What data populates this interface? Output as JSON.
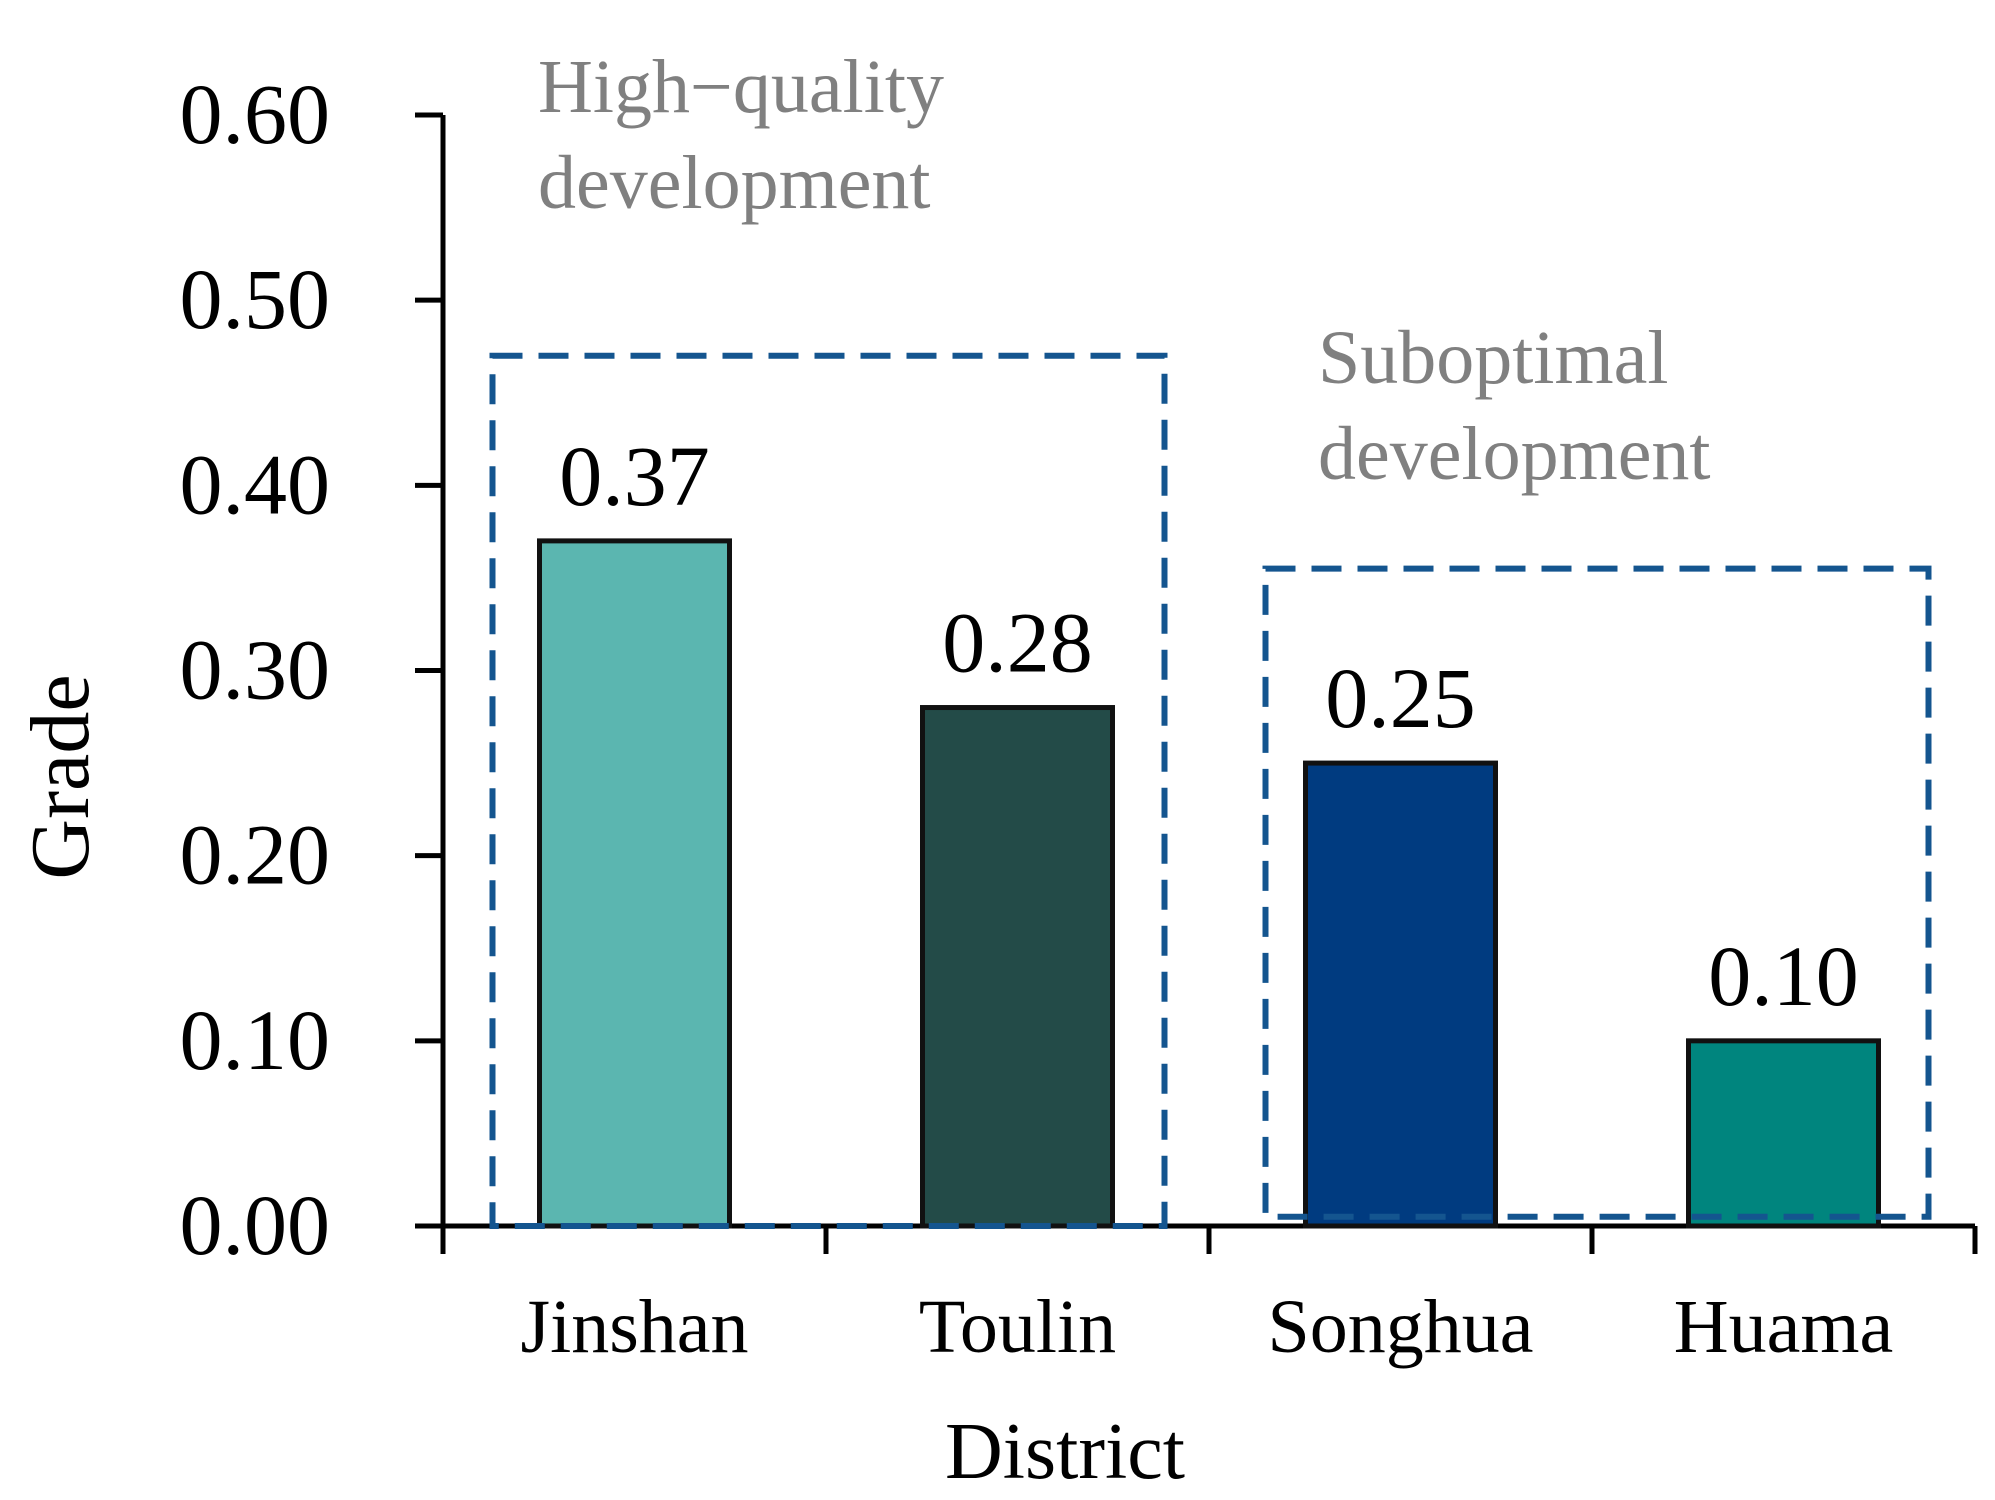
{
  "chart_data": {
    "type": "bar",
    "title": "",
    "xlabel": "District",
    "ylabel": "Grade",
    "categories": [
      "Jinshan",
      "Toulin",
      "Songhua",
      "Huama"
    ],
    "values": [
      0.37,
      0.28,
      0.25,
      0.1
    ],
    "data_labels": [
      "0.37",
      "0.28",
      "0.25",
      "0.10"
    ],
    "bar_colors": [
      "#5bb6b0",
      "#234b48",
      "#003b80",
      "#00857e"
    ],
    "ylim": [
      0,
      0.6
    ],
    "yticks": [
      0.0,
      0.1,
      0.2,
      0.3,
      0.4,
      0.5,
      0.6
    ],
    "ytick_labels": [
      "0.00",
      "0.10",
      "0.20",
      "0.30",
      "0.40",
      "0.50",
      "0.60"
    ],
    "grid": false,
    "groups": [
      {
        "label_lines": [
          "High−quality",
          "development"
        ],
        "categories": [
          "Jinshan",
          "Toulin"
        ],
        "box_top": 0.47,
        "box_bottom": 0.0
      },
      {
        "label_lines": [
          "Suboptimal",
          "development"
        ],
        "categories": [
          "Songhua",
          "Huama"
        ],
        "box_top": 0.355,
        "box_bottom": 0.005
      }
    ],
    "colors": {
      "axis": "#000000",
      "group_box": "#14558f",
      "group_label": "#808080",
      "text": "#000000"
    }
  }
}
